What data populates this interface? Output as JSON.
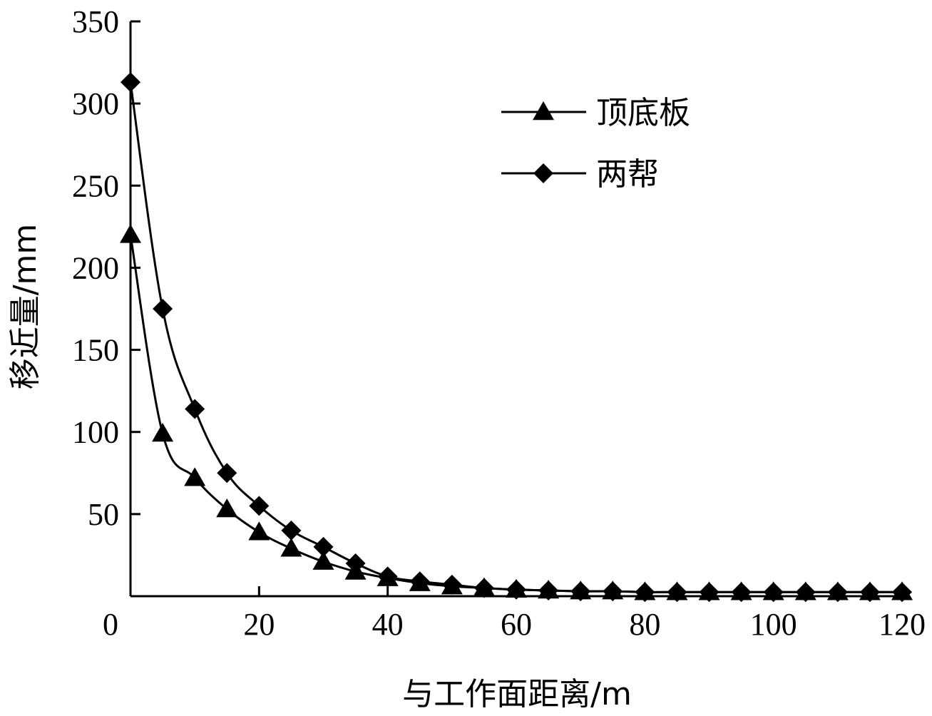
{
  "chart_data": {
    "type": "line",
    "title": "",
    "xlabel": "与工作面距离/m",
    "ylabel": "移近量/mm",
    "xlim": [
      0,
      120
    ],
    "ylim": [
      0,
      350
    ],
    "xticks": [
      0,
      20,
      40,
      60,
      80,
      100,
      120
    ],
    "yticks": [
      50,
      100,
      150,
      200,
      250,
      300,
      350
    ],
    "grid": false,
    "legend_position": "top-right",
    "series": [
      {
        "name": "顶底板",
        "marker": "triangle",
        "color": "#000000",
        "x": [
          0,
          5,
          10,
          15,
          20,
          25,
          30,
          35,
          40,
          45,
          50,
          55,
          60,
          65,
          70,
          75,
          80,
          85,
          90,
          95,
          100,
          105,
          110,
          115,
          120
        ],
        "y": [
          220,
          99,
          72,
          53,
          39,
          29,
          21,
          15,
          11,
          8,
          6,
          5,
          4,
          3.5,
          3,
          3,
          2.5,
          2.5,
          2.5,
          2.5,
          2.5,
          2.5,
          2.5,
          2.5,
          2.5
        ]
      },
      {
        "name": "两帮",
        "marker": "diamond",
        "color": "#000000",
        "x": [
          0,
          5,
          10,
          15,
          20,
          25,
          30,
          35,
          40,
          45,
          50,
          55,
          60,
          65,
          70,
          75,
          80,
          85,
          90,
          95,
          100,
          105,
          110,
          115,
          120
        ],
        "y": [
          313,
          175,
          114,
          75,
          55,
          40,
          30,
          20,
          12,
          9,
          7,
          5,
          4,
          3.5,
          3,
          3,
          2.5,
          2.5,
          2.5,
          2.5,
          2.5,
          2.5,
          2.5,
          2.5,
          2.5
        ]
      }
    ]
  }
}
